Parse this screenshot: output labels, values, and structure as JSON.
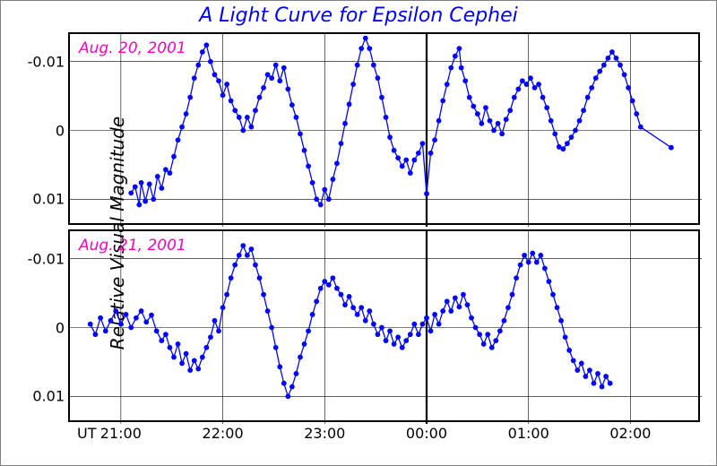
{
  "title": {
    "text": "A Light Curve for Epsilon Cephei",
    "color": "#0000ff",
    "fontsize": 22
  },
  "ylabel": {
    "text": "Relative Visual Magnitude",
    "fontsize": 20
  },
  "axes": {
    "background": "#ffffff",
    "border_color": "#000000",
    "border_width": 2.2,
    "grid_color": "#000000",
    "grid_width": 0.6
  },
  "x": {
    "min": 20.5,
    "max": 26.7,
    "ticks": [
      21,
      22,
      23,
      24,
      25,
      26
    ],
    "tick_labels": [
      "21:00",
      "22:00",
      "23:00",
      "00:00",
      "01:00",
      "02:00"
    ],
    "midnight_index": 3,
    "ut_label": "UT",
    "label_fontsize": 16
  },
  "y": {
    "min": 0.014,
    "max": -0.014,
    "ticks": [
      -0.01,
      0,
      0.01
    ],
    "tick_labels": [
      "-0.01",
      "0",
      "0.01"
    ],
    "label_fontsize": 16
  },
  "series_style": {
    "line_color": "#0006ff",
    "line_width": 1.3,
    "marker_color": "#0006ff",
    "marker_radius": 2.9
  },
  "date_label_style": {
    "color": "#ff00c0",
    "fontsize": 17
  },
  "panels": [
    {
      "date_label": "Aug. 20, 2001",
      "data": [
        [
          21.1,
          0.0091
        ],
        [
          21.14,
          0.0082
        ],
        [
          21.18,
          0.0108
        ],
        [
          21.2,
          0.0076
        ],
        [
          21.24,
          0.0103
        ],
        [
          21.28,
          0.0078
        ],
        [
          21.32,
          0.01
        ],
        [
          21.36,
          0.0067
        ],
        [
          21.4,
          0.0084
        ],
        [
          21.44,
          0.0057
        ],
        [
          21.48,
          0.0062
        ],
        [
          21.52,
          0.0038
        ],
        [
          21.56,
          0.0014
        ],
        [
          21.6,
          -0.0005
        ],
        [
          21.64,
          -0.0024
        ],
        [
          21.68,
          -0.0048
        ],
        [
          21.72,
          -0.0076
        ],
        [
          21.76,
          -0.0095
        ],
        [
          21.8,
          -0.0114
        ],
        [
          21.84,
          -0.0124
        ],
        [
          21.88,
          -0.01
        ],
        [
          21.92,
          -0.0081
        ],
        [
          21.96,
          -0.0072
        ],
        [
          22.0,
          -0.0051
        ],
        [
          22.04,
          -0.0067
        ],
        [
          22.08,
          -0.0043
        ],
        [
          22.12,
          -0.0029
        ],
        [
          22.16,
          -0.0019
        ],
        [
          22.2,
          0.0
        ],
        [
          22.24,
          -0.0019
        ],
        [
          22.28,
          -0.0005
        ],
        [
          22.32,
          -0.0029
        ],
        [
          22.36,
          -0.0048
        ],
        [
          22.4,
          -0.0062
        ],
        [
          22.44,
          -0.0081
        ],
        [
          22.48,
          -0.0076
        ],
        [
          22.52,
          -0.0095
        ],
        [
          22.56,
          -0.0072
        ],
        [
          22.6,
          -0.0091
        ],
        [
          22.64,
          -0.006
        ],
        [
          22.68,
          -0.0037
        ],
        [
          22.72,
          -0.0019
        ],
        [
          22.76,
          0.0005
        ],
        [
          22.8,
          0.0029
        ],
        [
          22.84,
          0.0052
        ],
        [
          22.88,
          0.0076
        ],
        [
          22.92,
          0.01
        ],
        [
          22.96,
          0.0108
        ],
        [
          23.0,
          0.0086
        ],
        [
          23.04,
          0.01
        ],
        [
          23.08,
          0.0071
        ],
        [
          23.12,
          0.0048
        ],
        [
          23.16,
          0.0019
        ],
        [
          23.2,
          -0.001
        ],
        [
          23.24,
          -0.0038
        ],
        [
          23.28,
          -0.0067
        ],
        [
          23.32,
          -0.0095
        ],
        [
          23.36,
          -0.0119
        ],
        [
          23.4,
          -0.0134
        ],
        [
          23.44,
          -0.0119
        ],
        [
          23.48,
          -0.0095
        ],
        [
          23.52,
          -0.0076
        ],
        [
          23.56,
          -0.0048
        ],
        [
          23.6,
          -0.0019
        ],
        [
          23.64,
          0.001
        ],
        [
          23.68,
          0.0029
        ],
        [
          23.72,
          0.004
        ],
        [
          23.76,
          0.0052
        ],
        [
          23.8,
          0.0043
        ],
        [
          23.84,
          0.0062
        ],
        [
          23.88,
          0.0043
        ],
        [
          23.92,
          0.0033
        ],
        [
          23.96,
          0.0019
        ],
        [
          24.0,
          0.0092
        ],
        [
          24.04,
          0.0033
        ],
        [
          24.08,
          0.0014
        ],
        [
          24.12,
          -0.0014
        ],
        [
          24.16,
          -0.0043
        ],
        [
          24.2,
          -0.0067
        ],
        [
          24.24,
          -0.0091
        ],
        [
          24.28,
          -0.0108
        ],
        [
          24.32,
          -0.0119
        ],
        [
          24.34,
          -0.0091
        ],
        [
          24.38,
          -0.0072
        ],
        [
          24.42,
          -0.0048
        ],
        [
          24.46,
          -0.0035
        ],
        [
          24.5,
          -0.0024
        ],
        [
          24.54,
          -0.001
        ],
        [
          24.58,
          -0.0033
        ],
        [
          24.62,
          -0.0014
        ],
        [
          24.66,
          0.0
        ],
        [
          24.7,
          -0.001
        ],
        [
          24.74,
          0.0005
        ],
        [
          24.78,
          -0.0016
        ],
        [
          24.82,
          -0.0029
        ],
        [
          24.86,
          -0.0048
        ],
        [
          24.9,
          -0.006
        ],
        [
          24.94,
          -0.0072
        ],
        [
          24.98,
          -0.0067
        ],
        [
          25.02,
          -0.0076
        ],
        [
          25.06,
          -0.0062
        ],
        [
          25.1,
          -0.0067
        ],
        [
          25.14,
          -0.0048
        ],
        [
          25.18,
          -0.0033
        ],
        [
          25.22,
          -0.0014
        ],
        [
          25.26,
          0.0005
        ],
        [
          25.3,
          0.0024
        ],
        [
          25.34,
          0.0027
        ],
        [
          25.38,
          0.0019
        ],
        [
          25.42,
          0.001
        ],
        [
          25.46,
          0.0
        ],
        [
          25.5,
          -0.0014
        ],
        [
          25.54,
          -0.0029
        ],
        [
          25.58,
          -0.0048
        ],
        [
          25.62,
          -0.0062
        ],
        [
          25.66,
          -0.0076
        ],
        [
          25.7,
          -0.0086
        ],
        [
          25.74,
          -0.0095
        ],
        [
          25.78,
          -0.0105
        ],
        [
          25.82,
          -0.0114
        ],
        [
          25.86,
          -0.0105
        ],
        [
          25.9,
          -0.0095
        ],
        [
          25.94,
          -0.0081
        ],
        [
          25.98,
          -0.0062
        ],
        [
          26.02,
          -0.0043
        ],
        [
          26.06,
          -0.0024
        ],
        [
          26.1,
          -0.0005
        ],
        [
          26.4,
          0.0025
        ]
      ]
    },
    {
      "date_label": "Aug. 21, 2001",
      "data": [
        [
          20.7,
          -0.0005
        ],
        [
          20.75,
          0.001
        ],
        [
          20.8,
          -0.0014
        ],
        [
          20.85,
          0.0005
        ],
        [
          20.9,
          -0.001
        ],
        [
          20.95,
          -0.0024
        ],
        [
          21.0,
          -0.0005
        ],
        [
          21.05,
          -0.0019
        ],
        [
          21.1,
          0.0
        ],
        [
          21.15,
          -0.0014
        ],
        [
          21.2,
          -0.0024
        ],
        [
          21.25,
          -0.0008
        ],
        [
          21.3,
          -0.0018
        ],
        [
          21.35,
          0.0005
        ],
        [
          21.4,
          0.0019
        ],
        [
          21.44,
          0.001
        ],
        [
          21.48,
          0.0029
        ],
        [
          21.52,
          0.0043
        ],
        [
          21.56,
          0.0024
        ],
        [
          21.6,
          0.0052
        ],
        [
          21.64,
          0.0038
        ],
        [
          21.68,
          0.0062
        ],
        [
          21.72,
          0.0048
        ],
        [
          21.76,
          0.006
        ],
        [
          21.8,
          0.0043
        ],
        [
          21.84,
          0.0029
        ],
        [
          21.88,
          0.0014
        ],
        [
          21.92,
          -0.001
        ],
        [
          21.96,
          0.0005
        ],
        [
          22.0,
          -0.0029
        ],
        [
          22.04,
          -0.0048
        ],
        [
          22.08,
          -0.0072
        ],
        [
          22.12,
          -0.0091
        ],
        [
          22.16,
          -0.0105
        ],
        [
          22.2,
          -0.0119
        ],
        [
          22.24,
          -0.0105
        ],
        [
          22.28,
          -0.0114
        ],
        [
          22.32,
          -0.0091
        ],
        [
          22.36,
          -0.0072
        ],
        [
          22.4,
          -0.0048
        ],
        [
          22.44,
          -0.0024
        ],
        [
          22.48,
          0.0
        ],
        [
          22.52,
          0.0029
        ],
        [
          22.56,
          0.0057
        ],
        [
          22.6,
          0.0081
        ],
        [
          22.64,
          0.01
        ],
        [
          22.68,
          0.0086
        ],
        [
          22.72,
          0.0067
        ],
        [
          22.76,
          0.0043
        ],
        [
          22.8,
          0.0024
        ],
        [
          22.84,
          0.0005
        ],
        [
          22.88,
          -0.0019
        ],
        [
          22.92,
          -0.0038
        ],
        [
          22.96,
          -0.0057
        ],
        [
          23.0,
          -0.0067
        ],
        [
          23.04,
          -0.0062
        ],
        [
          23.08,
          -0.0072
        ],
        [
          23.12,
          -0.0057
        ],
        [
          23.16,
          -0.0048
        ],
        [
          23.2,
          -0.0033
        ],
        [
          23.24,
          -0.0045
        ],
        [
          23.28,
          -0.0029
        ],
        [
          23.32,
          -0.0019
        ],
        [
          23.36,
          -0.0029
        ],
        [
          23.4,
          -0.001
        ],
        [
          23.44,
          -0.0024
        ],
        [
          23.48,
          -0.0005
        ],
        [
          23.52,
          0.001
        ],
        [
          23.56,
          0.0
        ],
        [
          23.6,
          0.0019
        ],
        [
          23.64,
          0.0005
        ],
        [
          23.68,
          0.0024
        ],
        [
          23.72,
          0.0014
        ],
        [
          23.76,
          0.0029
        ],
        [
          23.8,
          0.0019
        ],
        [
          23.84,
          0.001
        ],
        [
          23.88,
          -0.0005
        ],
        [
          23.92,
          0.001
        ],
        [
          23.96,
          -0.0005
        ],
        [
          24.0,
          -0.0014
        ],
        [
          24.04,
          0.0005
        ],
        [
          24.08,
          -0.0019
        ],
        [
          24.12,
          -0.0005
        ],
        [
          24.16,
          -0.0024
        ],
        [
          24.2,
          -0.0038
        ],
        [
          24.24,
          -0.0024
        ],
        [
          24.28,
          -0.0043
        ],
        [
          24.32,
          -0.003
        ],
        [
          24.36,
          -0.0048
        ],
        [
          24.4,
          -0.0033
        ],
        [
          24.44,
          -0.0014
        ],
        [
          24.48,
          0.0
        ],
        [
          24.52,
          0.001
        ],
        [
          24.56,
          0.0024
        ],
        [
          24.6,
          0.001
        ],
        [
          24.64,
          0.0029
        ],
        [
          24.68,
          0.0019
        ],
        [
          24.72,
          0.0005
        ],
        [
          24.76,
          -0.001
        ],
        [
          24.8,
          -0.0029
        ],
        [
          24.84,
          -0.0048
        ],
        [
          24.88,
          -0.0072
        ],
        [
          24.92,
          -0.0091
        ],
        [
          24.96,
          -0.0105
        ],
        [
          25.0,
          -0.0095
        ],
        [
          25.04,
          -0.0108
        ],
        [
          25.08,
          -0.0095
        ],
        [
          25.12,
          -0.0105
        ],
        [
          25.16,
          -0.0086
        ],
        [
          25.2,
          -0.0067
        ],
        [
          25.24,
          -0.0048
        ],
        [
          25.28,
          -0.0029
        ],
        [
          25.32,
          -0.001
        ],
        [
          25.36,
          0.0014
        ],
        [
          25.4,
          0.0033
        ],
        [
          25.44,
          0.0048
        ],
        [
          25.48,
          0.0062
        ],
        [
          25.52,
          0.0052
        ],
        [
          25.56,
          0.0071
        ],
        [
          25.6,
          0.0062
        ],
        [
          25.64,
          0.0081
        ],
        [
          25.68,
          0.0067
        ],
        [
          25.72,
          0.0086
        ],
        [
          25.76,
          0.0071
        ],
        [
          25.8,
          0.0081
        ]
      ]
    }
  ]
}
